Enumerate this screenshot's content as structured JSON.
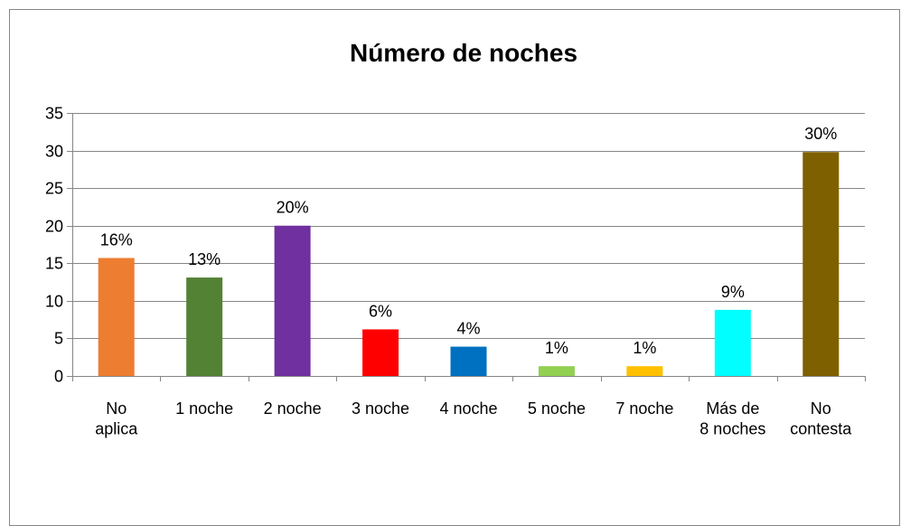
{
  "chart_data": {
    "type": "bar",
    "title": "Número de noches",
    "categories": [
      "No\naplica",
      "1 noche",
      "2 noche",
      "3 noche",
      "4 noche",
      "5 noche",
      "7 noche",
      "Más de\n8 noches",
      "No\ncontesta"
    ],
    "values": [
      15.7,
      13.1,
      20,
      6.2,
      3.9,
      1.3,
      1.3,
      8.8,
      29.8
    ],
    "value_labels": [
      "16%",
      "13%",
      "20%",
      "6%",
      "4%",
      "1%",
      "1%",
      "9%",
      "30%"
    ],
    "colors": [
      "#ed7d31",
      "#548235",
      "#7030a0",
      "#ff0000",
      "#0070c0",
      "#92d050",
      "#ffc000",
      "#00ffff",
      "#7f6000"
    ],
    "ylim": [
      0,
      35
    ],
    "yticks": [
      0,
      5,
      10,
      15,
      20,
      25,
      30,
      35
    ],
    "grid": true
  }
}
